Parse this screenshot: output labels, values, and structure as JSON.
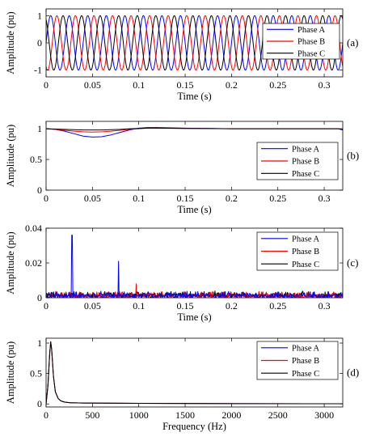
{
  "colors": {
    "Phase A": "#0000ff",
    "Phase B": "#ff0000",
    "Phase C": "#000000"
  },
  "chart_data": [
    {
      "panel_label": "(a)",
      "type": "line",
      "xlabel": "Time (s)",
      "ylabel": "Amplitude (pu)",
      "xlim": [
        0,
        0.32
      ],
      "ylim": [
        -1.25,
        1.25
      ],
      "xticks": [
        0,
        0.05,
        0.1,
        0.15,
        0.2,
        0.25,
        0.3
      ],
      "xtick_labels": [
        "0",
        "0.05",
        "0.1",
        "0.15",
        "0.2",
        "0.25",
        "0.3"
      ],
      "yticks": [
        -1,
        0,
        1
      ],
      "ytick_labels": [
        "-1",
        "0",
        "1"
      ],
      "legend_position": "top-right",
      "signal": {
        "kind": "sinusoid",
        "frequency_hz": 50,
        "amplitude_pu": 1,
        "phase_shift_deg": {
          "Phase A": 0,
          "Phase B": -120,
          "Phase C": 120
        }
      },
      "series": [
        {
          "name": "Phase A"
        },
        {
          "name": "Phase B"
        },
        {
          "name": "Phase C"
        }
      ]
    },
    {
      "panel_label": "(b)",
      "type": "line",
      "xlabel": "Time (s)",
      "ylabel": "Amplitude (pu)",
      "xlim": [
        0,
        0.32
      ],
      "ylim": [
        0,
        1.12
      ],
      "xticks": [
        0,
        0.05,
        0.1,
        0.15,
        0.2,
        0.25,
        0.3
      ],
      "xtick_labels": [
        "0",
        "0.05",
        "0.1",
        "0.15",
        "0.2",
        "0.25",
        "0.3"
      ],
      "yticks": [
        0,
        0.5,
        1
      ],
      "ytick_labels": [
        "0",
        "0.5",
        "1"
      ],
      "legend_position": "bottom-right",
      "series": [
        {
          "name": "Phase A",
          "x": [
            0,
            0.01,
            0.02,
            0.03,
            0.04,
            0.05,
            0.06,
            0.07,
            0.08,
            0.09,
            0.1,
            0.11,
            0.12,
            0.15,
            0.2,
            0.25,
            0.3,
            0.315,
            0.32
          ],
          "y": [
            1.0,
            0.99,
            0.96,
            0.92,
            0.88,
            0.865,
            0.87,
            0.9,
            0.94,
            0.98,
            1.01,
            1.02,
            1.02,
            1.01,
            1.0,
            1.0,
            1.0,
            1.0,
            0.98
          ]
        },
        {
          "name": "Phase B",
          "x": [
            0,
            0.01,
            0.02,
            0.03,
            0.04,
            0.05,
            0.06,
            0.07,
            0.08,
            0.09,
            0.1,
            0.11,
            0.12,
            0.15,
            0.2,
            0.25,
            0.3,
            0.315,
            0.32
          ],
          "y": [
            1.0,
            0.99,
            0.975,
            0.96,
            0.95,
            0.945,
            0.95,
            0.96,
            0.975,
            0.99,
            1.0,
            1.01,
            1.01,
            1.005,
            1.0,
            1.0,
            1.0,
            1.0,
            0.99
          ]
        },
        {
          "name": "Phase C",
          "x": [
            0,
            0.01,
            0.02,
            0.03,
            0.04,
            0.05,
            0.06,
            0.07,
            0.08,
            0.09,
            0.1,
            0.11,
            0.12,
            0.15,
            0.2,
            0.25,
            0.3,
            0.315,
            0.32
          ],
          "y": [
            1.0,
            0.995,
            0.99,
            0.985,
            0.98,
            0.98,
            0.98,
            0.985,
            0.99,
            1.0,
            1.005,
            1.01,
            1.01,
            1.005,
            1.0,
            1.0,
            1.0,
            1.0,
            0.99
          ]
        }
      ]
    },
    {
      "panel_label": "(c)",
      "type": "line",
      "xlabel": "Time (s)",
      "ylabel": "Amplitude (pu)",
      "xlim": [
        0,
        0.32
      ],
      "ylim": [
        0,
        0.04
      ],
      "xticks": [
        0,
        0.05,
        0.1,
        0.15,
        0.2,
        0.25,
        0.3
      ],
      "xtick_labels": [
        "0",
        "0.05",
        "0.1",
        "0.15",
        "0.2",
        "0.25",
        "0.3"
      ],
      "yticks": [
        0,
        0.02,
        0.04
      ],
      "ytick_labels": [
        "0",
        "0.02",
        "0.04"
      ],
      "legend_position": "top-right",
      "noise_floor": {
        "typical_max": 0.004
      },
      "spikes": [
        {
          "series": "Phase A",
          "x": 0.028,
          "y": 0.036
        },
        {
          "series": "Phase A",
          "x": 0.078,
          "y": 0.021
        },
        {
          "series": "Phase B",
          "x": 0.097,
          "y": 0.008
        }
      ],
      "series": [
        {
          "name": "Phase A"
        },
        {
          "name": "Phase B"
        },
        {
          "name": "Phase C"
        }
      ]
    },
    {
      "panel_label": "(d)",
      "type": "line",
      "xlabel": "Frequency (Hz)",
      "ylabel": "Amplitude (pu)",
      "xlim": [
        0,
        3200
      ],
      "ylim": [
        -0.05,
        1.08
      ],
      "xticks": [
        0,
        500,
        1000,
        1500,
        2000,
        2500,
        3000
      ],
      "xtick_labels": [
        "0",
        "500",
        "1000",
        "1500",
        "2000",
        "2500",
        "3000"
      ],
      "yticks": [
        0,
        0.5,
        1
      ],
      "ytick_labels": [
        "0",
        "0.5",
        "1"
      ],
      "legend_position": "top-right",
      "series": [
        {
          "name": "Phase A",
          "x": [
            0,
            20,
            40,
            50,
            60,
            80,
            100,
            130,
            160,
            200,
            260,
            400,
            1000,
            2000,
            3200
          ],
          "y": [
            0.0,
            0.3,
            0.85,
            1.02,
            0.9,
            0.45,
            0.2,
            0.09,
            0.05,
            0.03,
            0.02,
            0.015,
            0.01,
            0.005,
            0.003
          ]
        },
        {
          "name": "Phase B",
          "x": [
            0,
            20,
            40,
            50,
            60,
            80,
            100,
            130,
            160,
            200,
            260,
            400,
            1000,
            2000,
            3200
          ],
          "y": [
            0.0,
            0.3,
            0.85,
            1.02,
            0.9,
            0.45,
            0.2,
            0.09,
            0.05,
            0.03,
            0.02,
            0.015,
            0.01,
            0.005,
            0.003
          ]
        },
        {
          "name": "Phase C",
          "x": [
            0,
            20,
            40,
            50,
            60,
            80,
            100,
            130,
            160,
            200,
            260,
            400,
            1000,
            2000,
            3200
          ],
          "y": [
            0.0,
            0.3,
            0.85,
            1.02,
            0.9,
            0.45,
            0.2,
            0.09,
            0.05,
            0.03,
            0.02,
            0.015,
            0.01,
            0.005,
            0.003
          ]
        }
      ]
    }
  ]
}
